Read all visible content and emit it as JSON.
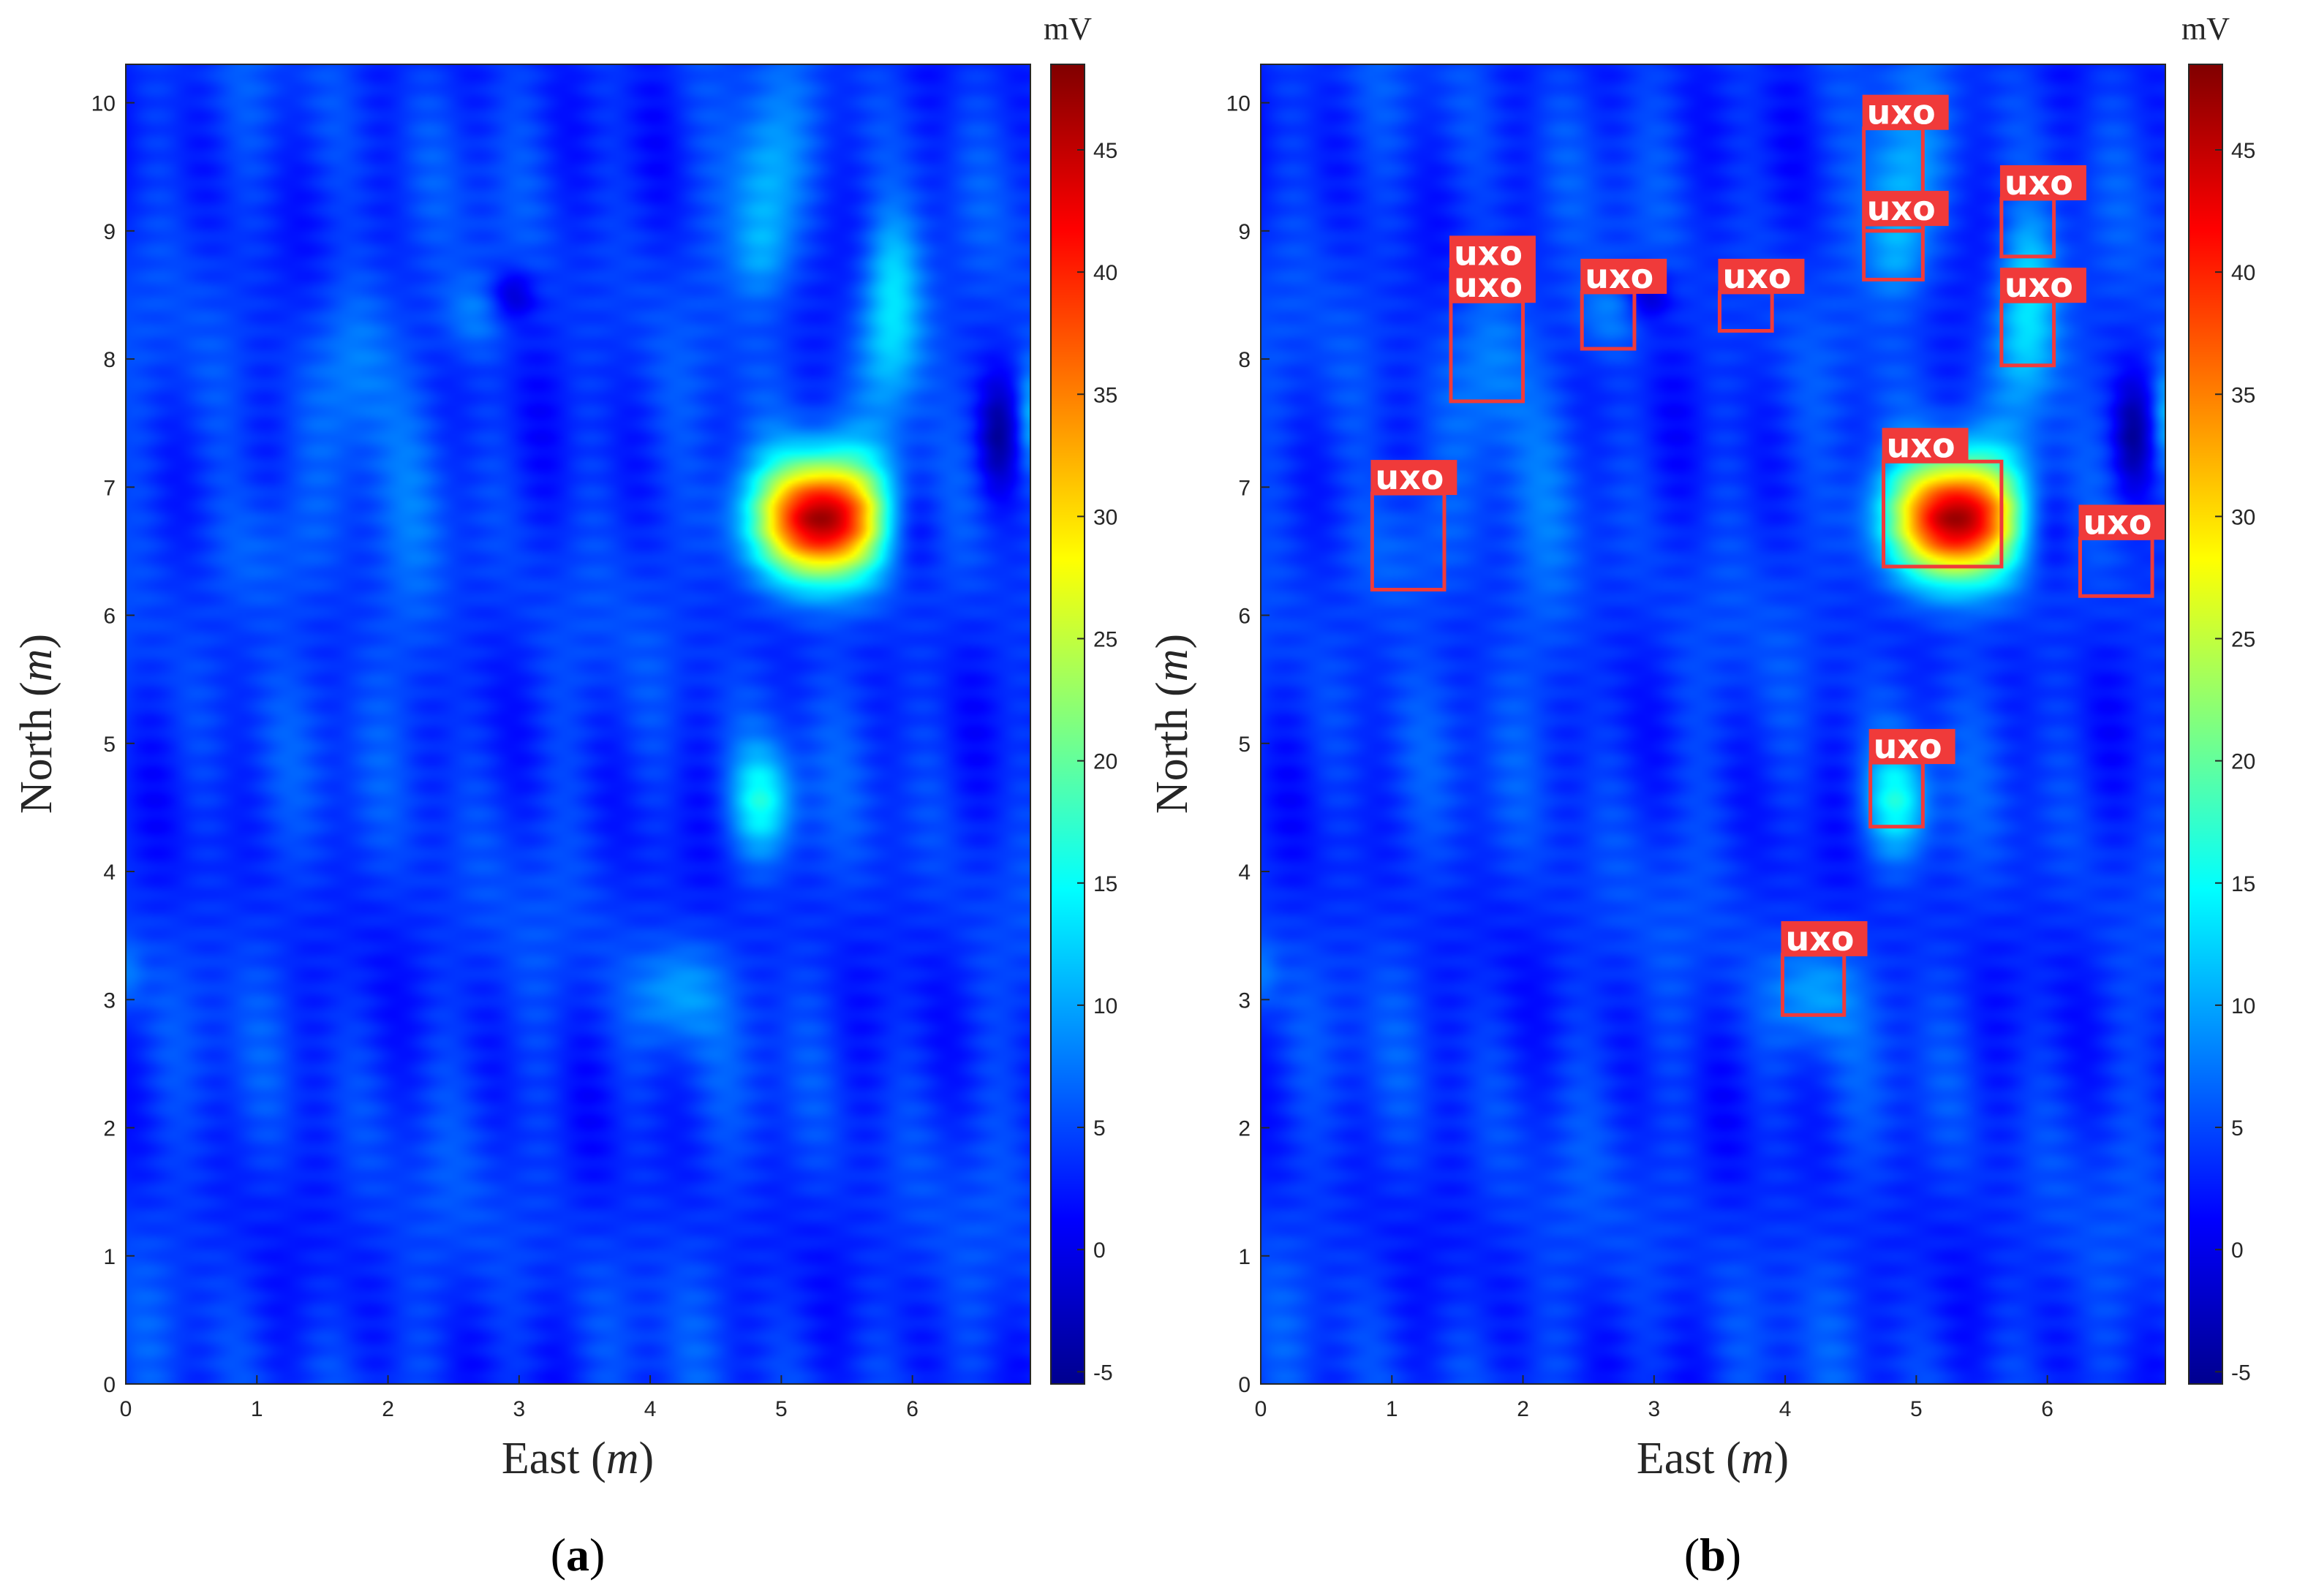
{
  "chart_data": [
    {
      "type": "heatmap",
      "panel_label": "a",
      "xlabel_prefix": "East",
      "xlabel_unit": "m",
      "ylabel_prefix": "North",
      "ylabel_unit": "m",
      "xlim": [
        0,
        6.9
      ],
      "ylim": [
        0,
        10.3
      ],
      "xticks": [
        "0",
        "1",
        "2",
        "3",
        "4",
        "5",
        "6"
      ],
      "yticks": [
        "0",
        "1",
        "2",
        "3",
        "4",
        "5",
        "6",
        "7",
        "8",
        "9",
        "10"
      ],
      "colorbar": {
        "label": "mV",
        "min": -5.5,
        "max": 48.5,
        "ticks": [
          "-5",
          "0",
          "5",
          "10",
          "15",
          "20",
          "25",
          "30",
          "35",
          "40",
          "45"
        ]
      },
      "background_mV": 4,
      "anomalies": [
        {
          "x": 5.3,
          "y": 6.75,
          "sx": 0.35,
          "sy": 0.33,
          "mV": 44
        },
        {
          "x": 5.95,
          "y": 6.7,
          "sx": 0.18,
          "sy": 0.3,
          "mV": -7
        },
        {
          "x": 5.85,
          "y": 8.2,
          "sx": 0.18,
          "sy": 0.45,
          "mV": 10
        },
        {
          "x": 5.85,
          "y": 8.8,
          "sx": 0.14,
          "sy": 0.3,
          "mV": 4
        },
        {
          "x": 4.85,
          "y": 9.35,
          "sx": 0.2,
          "sy": 0.45,
          "mV": 7
        },
        {
          "x": 4.85,
          "y": 8.8,
          "sx": 0.16,
          "sy": 0.25,
          "mV": 4
        },
        {
          "x": 4.85,
          "y": 4.55,
          "sx": 0.17,
          "sy": 0.3,
          "mV": 11
        },
        {
          "x": 4.2,
          "y": 3.05,
          "sx": 0.22,
          "sy": 0.28,
          "mV": 6
        },
        {
          "x": 1.75,
          "y": 8.05,
          "sx": 0.2,
          "sy": 0.5,
          "mV": 5
        },
        {
          "x": 2.65,
          "y": 8.35,
          "sx": 0.18,
          "sy": 0.22,
          "mV": 4
        },
        {
          "x": 2.95,
          "y": 8.5,
          "sx": 0.12,
          "sy": 0.14,
          "mV": -6
        },
        {
          "x": 1.05,
          "y": 6.5,
          "sx": 0.3,
          "sy": 0.4,
          "mV": 4
        },
        {
          "x": 2.2,
          "y": 6.0,
          "sx": 0.22,
          "sy": 1.0,
          "mV": 2.5
        },
        {
          "x": 6.65,
          "y": 7.4,
          "sx": 0.1,
          "sy": 0.3,
          "mV": -7
        },
        {
          "x": 6.9,
          "y": 7.55,
          "sx": 0.07,
          "sy": 0.3,
          "mV": 7
        },
        {
          "x": 0.0,
          "y": 3.2,
          "sx": 0.1,
          "sy": 0.2,
          "mV": 4
        }
      ]
    },
    {
      "type": "heatmap",
      "panel_label": "b",
      "xlabel_prefix": "East",
      "xlabel_unit": "m",
      "ylabel_prefix": "North",
      "ylabel_unit": "m",
      "xlim": [
        0,
        6.9
      ],
      "ylim": [
        0,
        10.3
      ],
      "xticks": [
        "0",
        "1",
        "2",
        "3",
        "4",
        "5",
        "6"
      ],
      "yticks": [
        "0",
        "1",
        "2",
        "3",
        "4",
        "5",
        "6",
        "7",
        "8",
        "9",
        "10"
      ],
      "colorbar": {
        "label": "mV",
        "min": -5.5,
        "max": 48.5,
        "ticks": [
          "-5",
          "0",
          "5",
          "10",
          "15",
          "20",
          "25",
          "30",
          "35",
          "40",
          "45"
        ]
      },
      "detections": [
        {
          "label": "uxo",
          "x0": 0.85,
          "x1": 1.4,
          "y0": 6.2,
          "y1": 6.95
        },
        {
          "label": "uxo",
          "x0": 1.45,
          "x1": 2.0,
          "y0": 7.67,
          "y1": 8.45
        },
        {
          "label": "uxo",
          "x0": 1.45,
          "x1": 2.0,
          "y0": 8.45,
          "y1": 8.7
        },
        {
          "label": "uxo",
          "x0": 2.45,
          "x1": 2.85,
          "y0": 8.08,
          "y1": 8.52
        },
        {
          "label": "uxo",
          "x0": 3.5,
          "x1": 3.9,
          "y0": 8.22,
          "y1": 8.52
        },
        {
          "label": "uxo",
          "x0": 4.6,
          "x1": 5.05,
          "y0": 9.0,
          "y1": 9.8
        },
        {
          "label": "uxo",
          "x0": 4.6,
          "x1": 5.05,
          "y0": 8.62,
          "y1": 9.05
        },
        {
          "label": "uxo",
          "x0": 5.65,
          "x1": 6.05,
          "y0": 8.8,
          "y1": 9.25
        },
        {
          "label": "uxo",
          "x0": 5.65,
          "x1": 6.05,
          "y0": 7.95,
          "y1": 8.45
        },
        {
          "label": "uxo",
          "x0": 4.75,
          "x1": 5.65,
          "y0": 6.38,
          "y1": 7.2
        },
        {
          "label": "uxo",
          "x0": 6.25,
          "x1": 6.8,
          "y0": 6.15,
          "y1": 6.6
        },
        {
          "label": "uxo",
          "x0": 4.65,
          "x1": 5.05,
          "y0": 4.35,
          "y1": 4.85
        },
        {
          "label": "uxo",
          "x0": 3.98,
          "x1": 4.45,
          "y0": 2.88,
          "y1": 3.35
        }
      ]
    }
  ]
}
